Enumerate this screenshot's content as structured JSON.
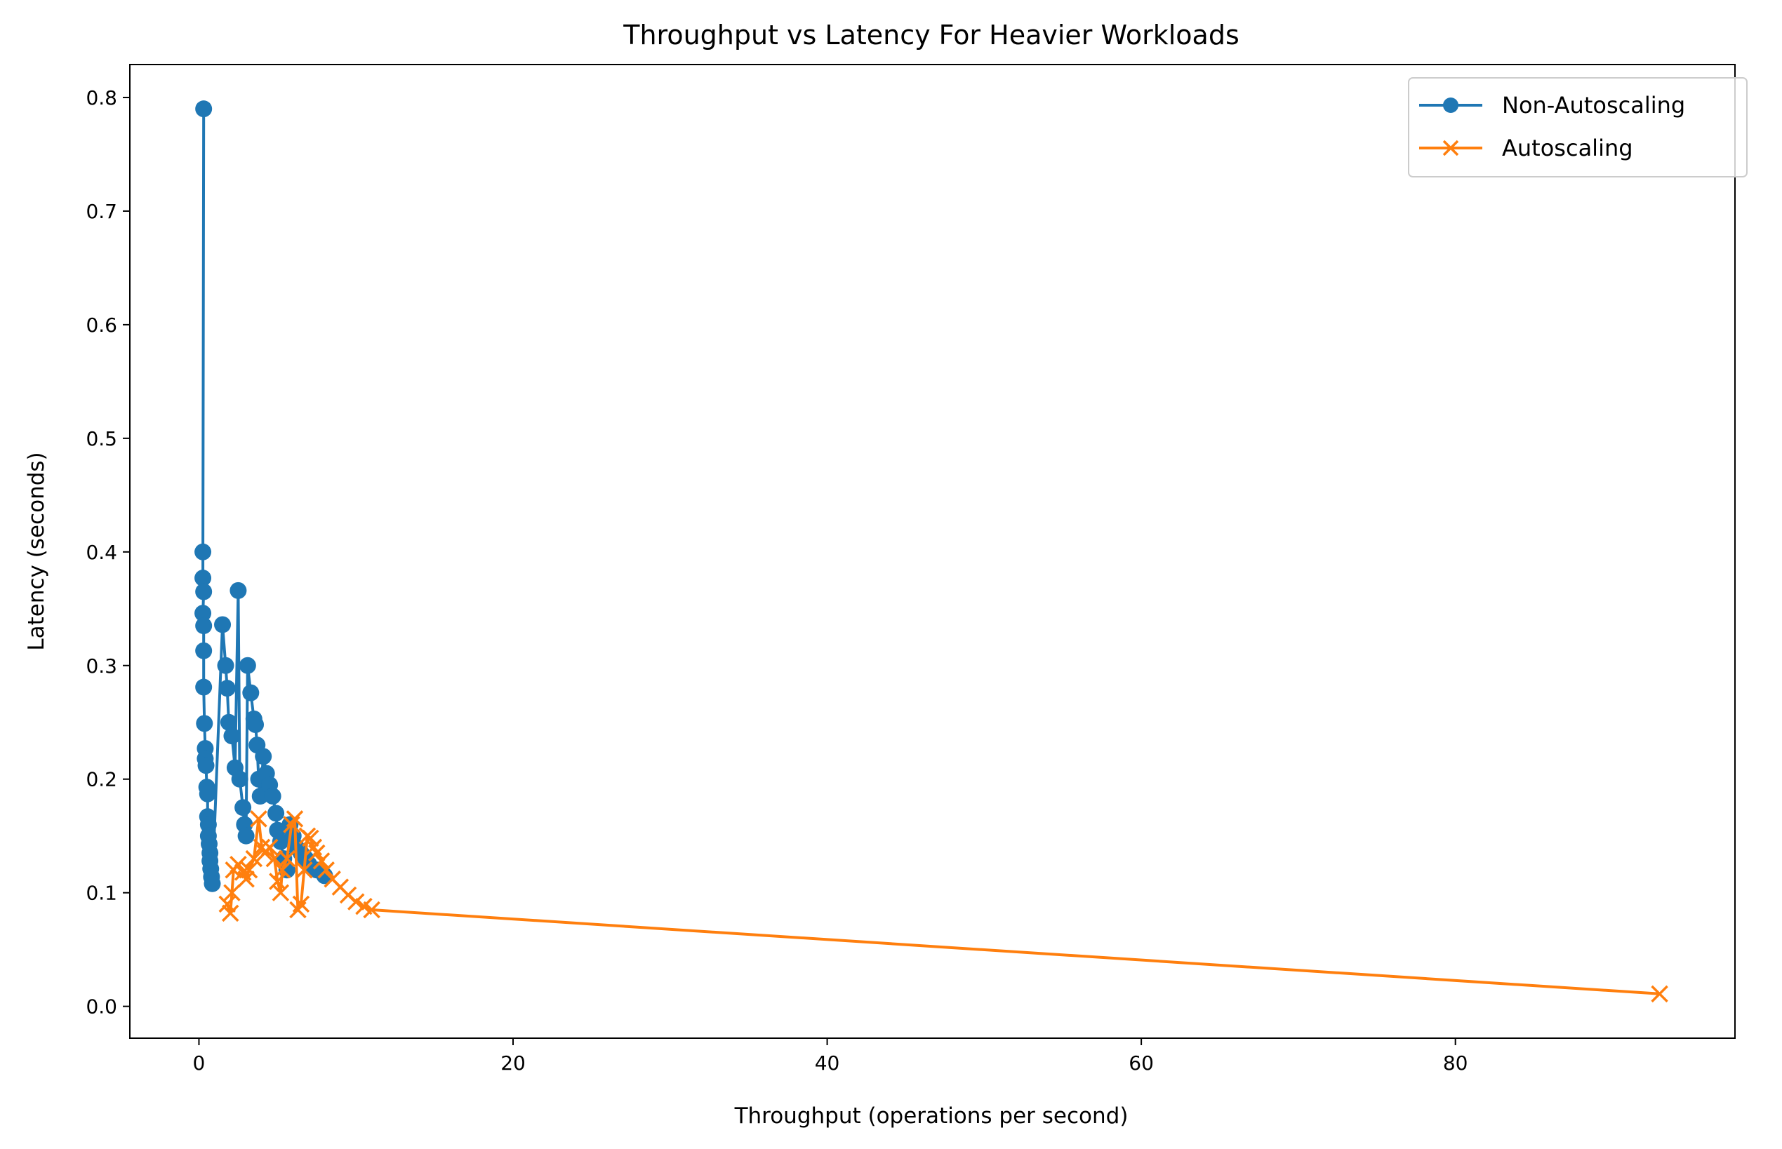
{
  "chart_data": {
    "type": "line",
    "title": "Throughput vs Latency For Heavier Workloads",
    "xlabel": "Throughput (operations per second)",
    "ylabel": "Latency (seconds)",
    "xlim": [
      -4.4,
      97.8
    ],
    "ylim": [
      -0.028,
      0.829
    ],
    "xticks": [
      0,
      20,
      40,
      60,
      80
    ],
    "yticks": [
      0.0,
      0.1,
      0.2,
      0.3,
      0.4,
      0.5,
      0.6,
      0.7,
      0.8
    ],
    "xtick_labels": [
      "0",
      "20",
      "40",
      "60",
      "80"
    ],
    "ytick_labels": [
      "0.0",
      "0.1",
      "0.2",
      "0.3",
      "0.4",
      "0.5",
      "0.6",
      "0.7",
      "0.8"
    ],
    "grid": false,
    "legend_position": "top-right",
    "series": [
      {
        "name": "Non-Autoscaling",
        "color": "#1f77b4",
        "marker": "circle",
        "points": [
          [
            0.3,
            0.79
          ],
          [
            0.25,
            0.4
          ],
          [
            0.25,
            0.377
          ],
          [
            0.3,
            0.365
          ],
          [
            0.25,
            0.346
          ],
          [
            0.3,
            0.335
          ],
          [
            0.3,
            0.313
          ],
          [
            0.3,
            0.281
          ],
          [
            0.35,
            0.249
          ],
          [
            0.4,
            0.227
          ],
          [
            0.4,
            0.218
          ],
          [
            0.45,
            0.212
          ],
          [
            0.5,
            0.193
          ],
          [
            0.55,
            0.187
          ],
          [
            0.55,
            0.167
          ],
          [
            0.6,
            0.16
          ],
          [
            0.6,
            0.15
          ],
          [
            0.65,
            0.143
          ],
          [
            0.7,
            0.135
          ],
          [
            0.7,
            0.128
          ],
          [
            0.75,
            0.121
          ],
          [
            0.8,
            0.114
          ],
          [
            0.85,
            0.108
          ],
          [
            1.5,
            0.336
          ],
          [
            1.7,
            0.3
          ],
          [
            1.8,
            0.28
          ],
          [
            1.9,
            0.25
          ],
          [
            2.1,
            0.238
          ],
          [
            2.3,
            0.21
          ],
          [
            2.5,
            0.366
          ],
          [
            2.6,
            0.2
          ],
          [
            2.8,
            0.175
          ],
          [
            2.9,
            0.16
          ],
          [
            3.0,
            0.15
          ],
          [
            3.1,
            0.3
          ],
          [
            3.3,
            0.276
          ],
          [
            3.5,
            0.253
          ],
          [
            3.6,
            0.248
          ],
          [
            3.7,
            0.23
          ],
          [
            3.8,
            0.2
          ],
          [
            3.9,
            0.185
          ],
          [
            4.1,
            0.22
          ],
          [
            4.3,
            0.205
          ],
          [
            4.5,
            0.195
          ],
          [
            4.7,
            0.185
          ],
          [
            4.9,
            0.17
          ],
          [
            5.0,
            0.155
          ],
          [
            5.2,
            0.145
          ],
          [
            5.4,
            0.13
          ],
          [
            5.6,
            0.12
          ],
          [
            5.8,
            0.16
          ],
          [
            6.0,
            0.15
          ],
          [
            6.2,
            0.14
          ],
          [
            6.5,
            0.135
          ],
          [
            6.8,
            0.13
          ],
          [
            7.0,
            0.125
          ],
          [
            7.5,
            0.12
          ],
          [
            8.0,
            0.115
          ]
        ]
      },
      {
        "name": "Autoscaling",
        "color": "#ff7f0e",
        "marker": "x",
        "points": [
          [
            1.8,
            0.09
          ],
          [
            2.0,
            0.082
          ],
          [
            2.1,
            0.1
          ],
          [
            2.2,
            0.12
          ],
          [
            2.5,
            0.125
          ],
          [
            2.8,
            0.118
          ],
          [
            3.0,
            0.112
          ],
          [
            3.2,
            0.12
          ],
          [
            3.5,
            0.13
          ],
          [
            3.8,
            0.165
          ],
          [
            4.0,
            0.14
          ],
          [
            4.2,
            0.135
          ],
          [
            4.5,
            0.14
          ],
          [
            4.8,
            0.13
          ],
          [
            5.0,
            0.11
          ],
          [
            5.2,
            0.1
          ],
          [
            5.3,
            0.12
          ],
          [
            5.6,
            0.13
          ],
          [
            5.9,
            0.16
          ],
          [
            6.1,
            0.165
          ],
          [
            6.3,
            0.085
          ],
          [
            6.5,
            0.09
          ],
          [
            6.7,
            0.12
          ],
          [
            6.9,
            0.15
          ],
          [
            7.1,
            0.148
          ],
          [
            7.3,
            0.14
          ],
          [
            7.5,
            0.135
          ],
          [
            7.8,
            0.128
          ],
          [
            8.1,
            0.12
          ],
          [
            8.5,
            0.112
          ],
          [
            9.0,
            0.105
          ],
          [
            9.5,
            0.098
          ],
          [
            10.0,
            0.092
          ],
          [
            10.5,
            0.088
          ],
          [
            11.0,
            0.085
          ],
          [
            93.0,
            0.011
          ]
        ]
      }
    ]
  }
}
